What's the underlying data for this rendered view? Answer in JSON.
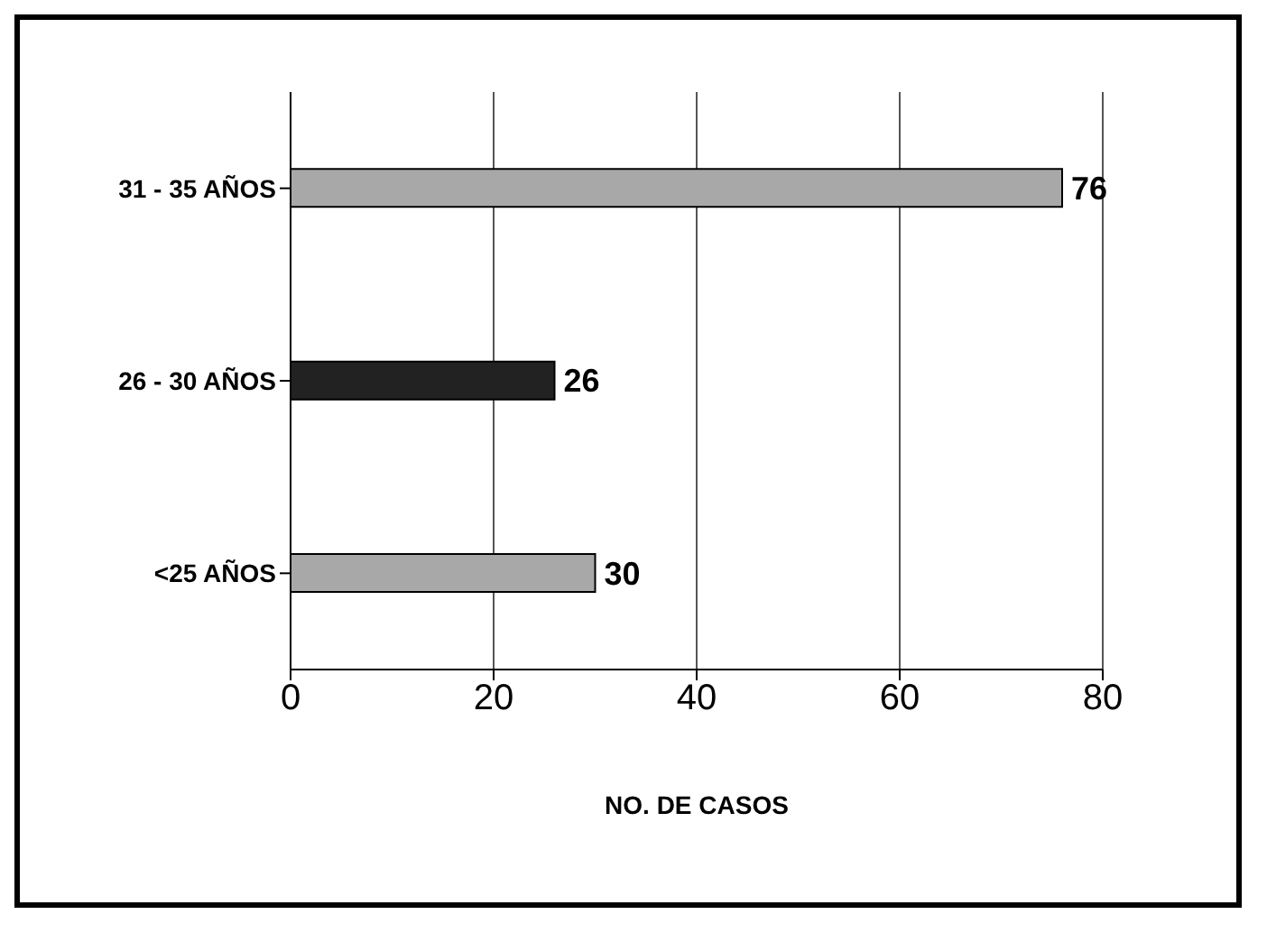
{
  "chart_data": {
    "type": "bar",
    "orientation": "horizontal",
    "xlabel": "NO. DE CASOS",
    "categories": [
      "31 - 35 AÑOS",
      "26 - 30 AÑOS",
      "<25 AÑOS"
    ],
    "values": [
      76,
      26,
      30
    ],
    "colors": [
      "#a8a8a8",
      "#222222",
      "#a8a8a8"
    ],
    "xlim": [
      0,
      80
    ],
    "xticks": [
      0,
      20,
      40,
      60,
      80
    ],
    "grid": "x",
    "data_labels": true
  }
}
